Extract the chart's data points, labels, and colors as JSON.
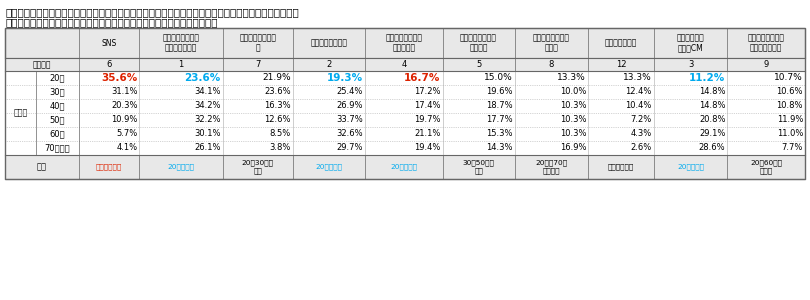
{
  "title_line1": "図表８「あなたは顔や全身のスキンケアの情報をどこから得ていますか。当てはまるものをすべて教えて",
  "title_line2": "ください。　（お答えはいくつでも）」への回答を２０代の順位で並べ替え",
  "columns": [
    "SNS",
    "メーカーなどの公\n式ウェブサイト",
    "比較・まとめサイ\nト",
    "販売店などの店頭",
    "友人・知人・家族\nのクチコミ",
    "ネットショッピン\nグサイト",
    "インターネット上\nの広告",
    "動画共有サイト",
    "テレビ番組／\nテレビCM",
    "ニュースサイト・\nニュースアプリ"
  ],
  "overall_rank": [
    "6",
    "1",
    "7",
    "2",
    "4",
    "5",
    "8",
    "12",
    "3",
    "9"
  ],
  "age_groups": [
    "20代",
    "30代",
    "40代",
    "50代",
    "60代",
    "70代以上"
  ],
  "data": {
    "20代": [
      "35.6%",
      "23.6%",
      "21.9%",
      "19.3%",
      "16.7%",
      "15.0%",
      "13.3%",
      "13.3%",
      "11.2%",
      "10.7%"
    ],
    "30代": [
      "31.1%",
      "34.1%",
      "23.6%",
      "25.4%",
      "17.2%",
      "19.6%",
      "10.0%",
      "12.4%",
      "14.8%",
      "10.6%"
    ],
    "40代": [
      "20.3%",
      "34.2%",
      "16.3%",
      "26.9%",
      "17.4%",
      "18.7%",
      "10.3%",
      "10.4%",
      "14.8%",
      "10.8%"
    ],
    "50代": [
      "10.9%",
      "32.2%",
      "12.6%",
      "33.7%",
      "19.7%",
      "17.7%",
      "10.3%",
      "7.2%",
      "20.8%",
      "11.9%"
    ],
    "60代": [
      "5.7%",
      "30.1%",
      "8.5%",
      "32.6%",
      "21.1%",
      "15.3%",
      "10.3%",
      "4.3%",
      "29.1%",
      "11.0%"
    ],
    "70代以上": [
      "4.1%",
      "26.1%",
      "3.8%",
      "29.7%",
      "19.4%",
      "14.3%",
      "16.9%",
      "2.6%",
      "28.6%",
      "7.7%"
    ]
  },
  "trend": [
    "若いほど高い",
    "20代が最低",
    "20〜30代が\n高い",
    "20代が最低",
    "20代が最低",
    "30〜50代が\n高い",
    "20代と70以\n上が高い",
    "若いほど高い",
    "20代が最低",
    "20〜60代が\n同程度"
  ],
  "col_colors_20s": {
    "0": "#dd2200",
    "1": "#00aaee",
    "3": "#00aaee",
    "4": "#dd2200",
    "8": "#00aaee"
  },
  "trend_colors": {
    "0": "#dd2200",
    "1": "#00aaee",
    "3": "#00aaee",
    "4": "#00aaee",
    "8": "#00aaee"
  },
  "bg_color": "#ffffff",
  "header_bg": "#e8e8e8",
  "border_color": "#666666",
  "text_color": "#000000"
}
